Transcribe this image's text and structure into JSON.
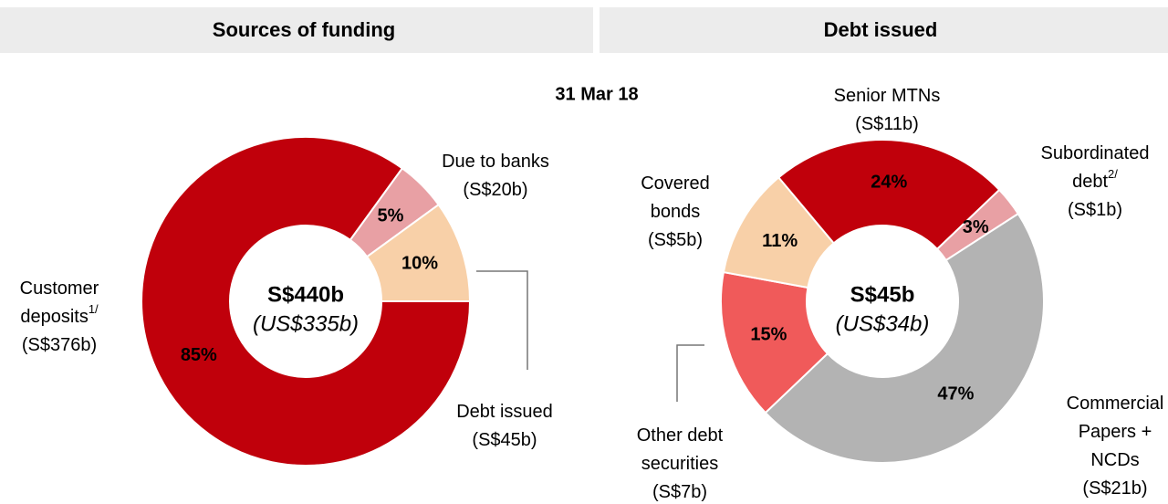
{
  "date": "31 Mar 18",
  "chart_data": [
    {
      "type": "pie",
      "title": "Sources of funding",
      "center_label": "S$440b",
      "center_sublabel": "(US$335b)",
      "categories": [
        "Customer deposits",
        "Due to banks",
        "Debt issued"
      ],
      "footnotes": [
        "1/",
        null,
        null
      ],
      "amount_labels": [
        "(S$376b)",
        "(S$20b)",
        "(S$45b)"
      ],
      "values": [
        85,
        5,
        10
      ],
      "value_labels": [
        "85%",
        "5%",
        "10%"
      ],
      "colors": [
        "#c0000b",
        "#e8a0a4",
        "#f8d0a8"
      ],
      "value_label_colors": [
        "#ffffff",
        "#000000",
        "#000000"
      ]
    },
    {
      "type": "pie",
      "title": "Debt issued",
      "center_label": "S$45b",
      "center_sublabel": "(US$34b)",
      "categories": [
        "Senior MTNs",
        "Subordinated debt",
        "Commercial Papers + NCDs",
        "Other debt securities",
        "Covered bonds"
      ],
      "footnotes": [
        null,
        "2/",
        null,
        null,
        null
      ],
      "amount_labels": [
        "(S$11b)",
        "(S$1b)",
        "(S$21b)",
        "(S$7b)",
        "(S$5b)"
      ],
      "values": [
        24,
        3,
        47,
        15,
        11
      ],
      "value_labels": [
        "24%",
        "3%",
        "47%",
        "15%",
        "11%"
      ],
      "colors": [
        "#c0000b",
        "#e8a0a4",
        "#b3b3b3",
        "#f05a5a",
        "#f8d0a8"
      ],
      "value_label_colors": [
        "#ffffff",
        "#000000",
        "#000000",
        "#000000",
        "#000000"
      ]
    }
  ]
}
